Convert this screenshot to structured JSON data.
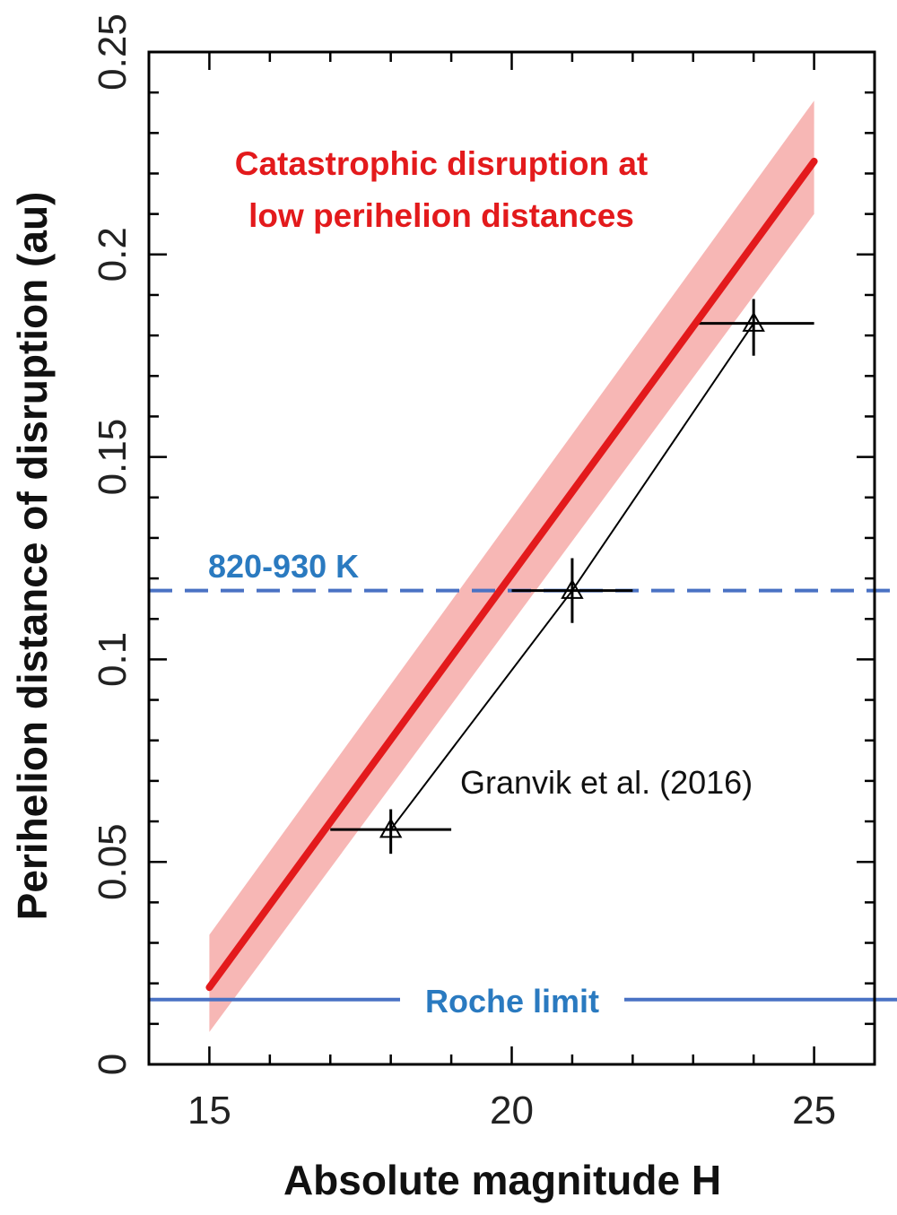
{
  "chart_data": {
    "type": "line",
    "xlabel": "Absolute magnitude H",
    "ylabel": "Perihelion distance of disruption (au)",
    "xlim": [
      14,
      26
    ],
    "ylim": [
      0,
      0.25
    ],
    "xticks": [
      15,
      20,
      25
    ],
    "xtick_labels": [
      "15",
      "20",
      "25"
    ],
    "yticks": [
      0,
      0.05,
      0.1,
      0.15,
      0.2,
      0.25
    ],
    "ytick_labels": [
      "0",
      "0.05",
      "0.1",
      "0.15",
      "0.2",
      "0.25"
    ],
    "series": [
      {
        "name": "Catastrophic disruption at low perihelion distances",
        "style": "thick-line-with-band",
        "x": [
          15,
          25
        ],
        "y": [
          0.019,
          0.223
        ],
        "band_lower": [
          0.008,
          0.21
        ],
        "band_upper": [
          0.032,
          0.238
        ]
      },
      {
        "name": "Granvik et al. (2016)",
        "style": "triangle-markers-with-errorbars",
        "x": [
          18,
          21,
          24
        ],
        "y": [
          0.058,
          0.117,
          0.183
        ],
        "x_err_low": [
          1,
          1,
          1
        ],
        "x_err_high": [
          1,
          1,
          1
        ],
        "y_err_low": [
          0.006,
          0.008,
          0.008
        ],
        "y_err_high": [
          0.005,
          0.008,
          0.006
        ]
      }
    ],
    "hlines": [
      {
        "name": "820-930 K",
        "y": 0.117,
        "style": "dashed",
        "color": "#4a72c4"
      },
      {
        "name": "Roche limit",
        "y": 0.016,
        "style": "solid",
        "color": "#4a72c4"
      }
    ],
    "annotations": {
      "disruption_line1": "Catastrophic disruption at",
      "disruption_line2": "low perihelion distances",
      "temperature_label": "820-930 K",
      "roche_label": "Roche limit",
      "granvik_label": "Granvik et al. (2016)"
    },
    "colors": {
      "model_line": "#e31a1c",
      "model_band": "#f7b7b5",
      "reference_lines": "#4a72c4",
      "reference_text": "#2a7ac0",
      "data_points": "#000000"
    }
  }
}
